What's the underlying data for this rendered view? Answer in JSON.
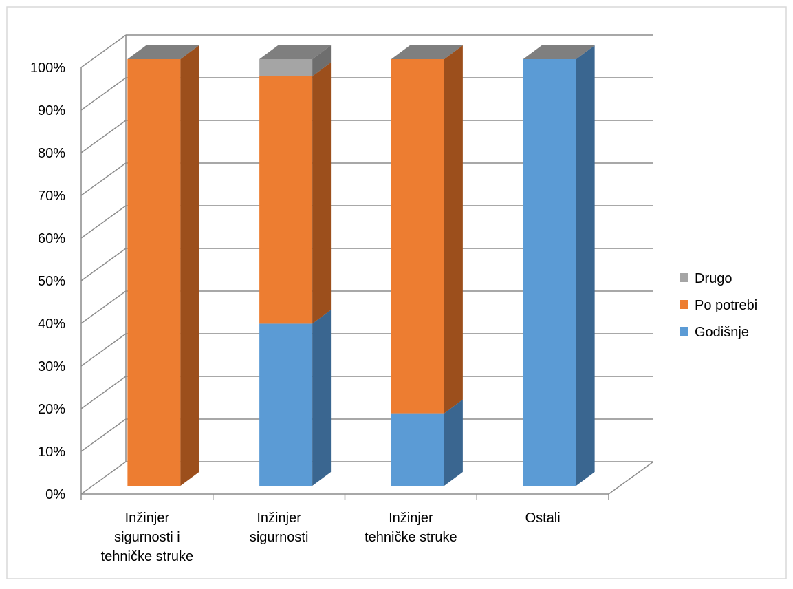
{
  "chart_data": {
    "type": "bar",
    "stacked": true,
    "percent_stacked": true,
    "three_d": true,
    "categories": [
      [
        "Inžinjer",
        "sigurnosti i",
        "tehničke struke"
      ],
      [
        "Inžinjer",
        "sigurnosti"
      ],
      [
        "Inžinjer",
        "tehničke struke"
      ],
      [
        "Ostali"
      ]
    ],
    "series": [
      {
        "name": "Godišnje",
        "values": [
          0,
          38,
          17,
          100
        ],
        "color": "#5b9bd5",
        "side_color": "#3a6690"
      },
      {
        "name": "Po potrebi",
        "values": [
          100,
          58,
          83,
          0
        ],
        "color": "#ed7d31",
        "side_color": "#9c4f1c"
      },
      {
        "name": "Drugo",
        "values": [
          0,
          4,
          0,
          0
        ],
        "color": "#a5a5a5",
        "side_color": "#6e6e6e"
      }
    ],
    "y_ticks": [
      "0%",
      "10%",
      "20%",
      "30%",
      "40%",
      "50%",
      "60%",
      "70%",
      "80%",
      "90%",
      "100%"
    ],
    "ylim": [
      0,
      100
    ],
    "grid": true,
    "legend_position": "right",
    "legend_order": [
      "Drugo",
      "Po potrebi",
      "Godišnje"
    ],
    "title": "",
    "xlabel": "",
    "ylabel": ""
  }
}
